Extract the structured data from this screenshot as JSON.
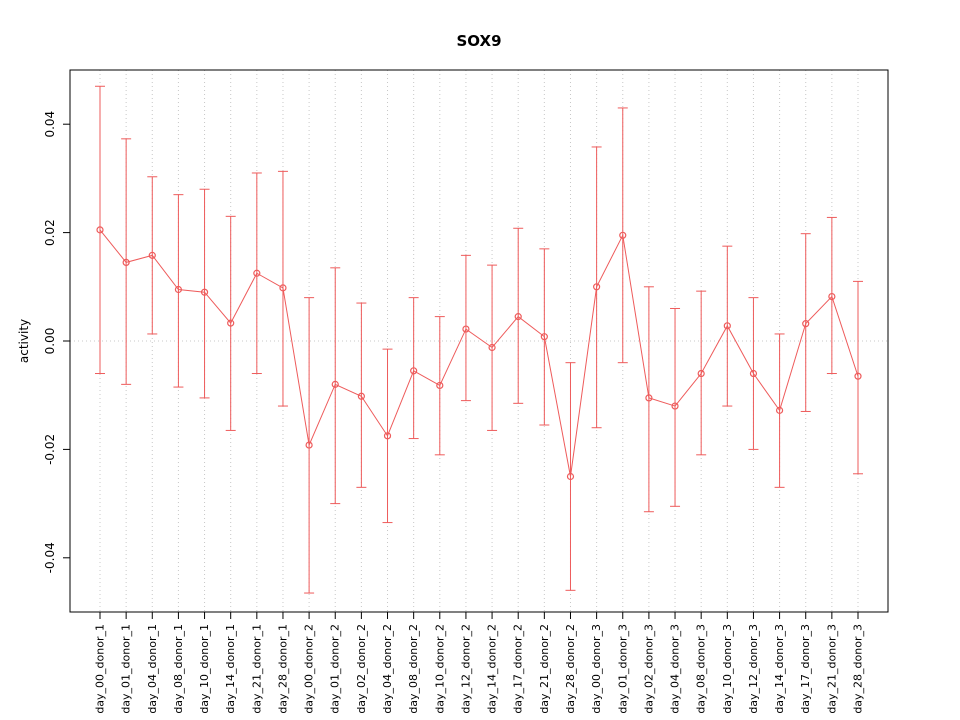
{
  "chart_data": {
    "type": "line",
    "title": "SOX9",
    "xlabel": "",
    "ylabel": "activity",
    "ylim": [
      -0.05,
      0.05
    ],
    "yticks": [
      -0.04,
      -0.02,
      0,
      0.02,
      0.04
    ],
    "grid": "vertical dotted gridlines at each category; dotted horizontal reference line at y=0",
    "legend_position": "none",
    "point_style": "open-circle with vertical error bars and end caps, connected by line",
    "series_color": "#EE5B5B",
    "grid_color": "#C8C8C8",
    "categories": [
      "day_00_donor_1",
      "day_01_donor_1",
      "day_04_donor_1",
      "day_08_donor_1",
      "day_10_donor_1",
      "day_14_donor_1",
      "day_21_donor_1",
      "day_28_donor_1",
      "day_00_donor_2",
      "day_01_donor_2",
      "day_02_donor_2",
      "day_04_donor_2",
      "day_08_donor_2",
      "day_10_donor_2",
      "day_12_donor_2",
      "day_14_donor_2",
      "day_17_donor_2",
      "day_21_donor_2",
      "day_28_donor_2",
      "day_00_donor_3",
      "day_01_donor_3",
      "day_02_donor_3",
      "day_04_donor_3",
      "day_08_donor_3",
      "day_10_donor_3",
      "day_12_donor_3",
      "day_14_donor_3",
      "day_17_donor_3",
      "day_21_donor_3",
      "day_28_donor_3"
    ],
    "series": [
      {
        "name": "activity",
        "values": [
          0.0205,
          0.0145,
          0.0158,
          0.0095,
          0.009,
          0.0033,
          0.0125,
          0.0098,
          -0.0192,
          -0.008,
          -0.0102,
          -0.0175,
          -0.0055,
          -0.0082,
          0.0022,
          -0.0012,
          0.0045,
          0.0008,
          -0.025,
          0.01,
          0.0195,
          -0.0105,
          -0.012,
          -0.006,
          0.0028,
          -0.006,
          -0.0128,
          0.0032,
          0.0082,
          -0.0065
        ],
        "ci_low": [
          -0.006,
          -0.008,
          0.0013,
          -0.0085,
          -0.0105,
          -0.0165,
          -0.006,
          -0.012,
          -0.0465,
          -0.03,
          -0.027,
          -0.0335,
          -0.018,
          -0.021,
          -0.011,
          -0.0165,
          -0.0115,
          -0.0155,
          -0.046,
          -0.016,
          -0.004,
          -0.0315,
          -0.0305,
          -0.021,
          -0.012,
          -0.02,
          -0.027,
          -0.013,
          -0.006,
          -0.0245
        ],
        "ci_high": [
          0.047,
          0.0373,
          0.0303,
          0.027,
          0.028,
          0.023,
          0.031,
          0.0313,
          0.008,
          0.0135,
          0.007,
          -0.0015,
          0.008,
          0.0045,
          0.0158,
          0.014,
          0.0208,
          0.017,
          -0.004,
          0.0358,
          0.043,
          0.01,
          0.006,
          0.0092,
          0.0175,
          0.008,
          0.0013,
          0.0198,
          0.0228,
          0.011
        ]
      }
    ]
  }
}
